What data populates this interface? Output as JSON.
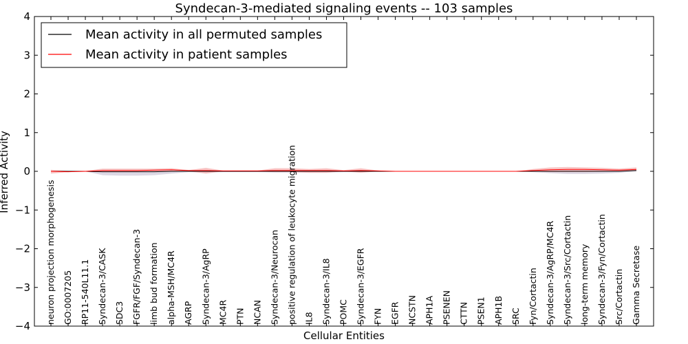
{
  "chart_data": {
    "type": "line",
    "title": "Syndecan-3-mediated signaling events -- 103 samples",
    "xlabel": "Cellular Entities",
    "ylabel": "Inferred Activity",
    "ylim": [
      -4,
      4
    ],
    "yticks": [
      -4,
      -3,
      -2,
      -1,
      0,
      1,
      2,
      3,
      4
    ],
    "ytick_labels": [
      "−4",
      "−3",
      "−2",
      "−1",
      "0",
      "1",
      "2",
      "3",
      "4"
    ],
    "legend_position": "top-left",
    "categories": [
      "neuron projection morphogenesis",
      "GO:0007205",
      "RP11-540L11.1",
      "Syndecan-3/CASK",
      "SDC3",
      "FGFR/FGF/Syndecan-3",
      "limb bud formation",
      "alpha-MSH/MC4R",
      "AGRP",
      "Syndecan-3/AgRP",
      "MC4R",
      "PTN",
      "NCAN",
      "Syndecan-3/Neurocan",
      "positive regulation of leukocyte migration",
      "IL8",
      "Syndecan-3/IL8",
      "POMC",
      "Syndecan-3/EGFR",
      "FYN",
      "EGFR",
      "NCSTN",
      "APH1A",
      "PSENEN",
      "CTTN",
      "PSEN1",
      "APH1B",
      "SRC",
      "Fyn/Cortactin",
      "Syndecan-3/AgRP/MC4R",
      "Syndecan-3/Src/Cortactin",
      "long-term memory",
      "Syndecan-3/Fyn/Cortactin",
      "Src/Cortactin",
      "Gamma Secretase"
    ],
    "series": [
      {
        "name": "Mean activity in all permuted samples",
        "color": "#000000",
        "values": [
          0,
          0,
          0,
          -0.01,
          -0.01,
          -0.01,
          -0.01,
          0,
          0,
          0,
          0,
          0,
          0,
          0,
          0,
          0,
          0,
          0,
          0,
          0,
          0,
          0,
          0,
          0,
          0,
          0,
          0,
          0,
          0,
          0,
          0,
          0,
          0,
          0,
          0.02
        ],
        "band_upper": [
          0,
          0,
          0,
          0.03,
          0.03,
          0.03,
          0.03,
          0.02,
          0.01,
          0.01,
          0.01,
          0.01,
          0.01,
          0.01,
          0.01,
          0.01,
          0.01,
          0.01,
          0.01,
          0.01,
          0,
          0,
          0,
          0,
          0,
          0,
          0,
          0,
          0.01,
          0.02,
          0.03,
          0.03,
          0.03,
          0.03,
          0.04
        ],
        "band_lower": [
          0,
          0,
          0,
          -0.1,
          -0.11,
          -0.11,
          -0.1,
          -0.06,
          -0.02,
          -0.03,
          -0.02,
          -0.02,
          -0.02,
          -0.03,
          -0.03,
          -0.03,
          -0.03,
          -0.02,
          -0.02,
          -0.01,
          0,
          0,
          0,
          0,
          0,
          0,
          0,
          0,
          -0.02,
          -0.05,
          -0.07,
          -0.07,
          -0.06,
          -0.04,
          0
        ],
        "band_color": "#cfc8d8"
      },
      {
        "name": "Mean activity in patient samples",
        "color": "#ff0000",
        "values": [
          0,
          -0.01,
          0,
          0.02,
          0.02,
          0.02,
          0.03,
          0.04,
          0.02,
          0.02,
          0.01,
          0.01,
          0.01,
          0.02,
          0.02,
          0.02,
          0.02,
          0.01,
          0.02,
          0.01,
          0,
          0,
          0,
          0,
          0,
          0,
          0,
          0,
          0.02,
          0.04,
          0.05,
          0.05,
          0.04,
          0.03,
          0.05
        ],
        "band_upper": [
          0.04,
          0.01,
          0.01,
          0.07,
          0.07,
          0.07,
          0.07,
          0.08,
          0.03,
          0.09,
          0.02,
          0.02,
          0.02,
          0.08,
          0.08,
          0.06,
          0.08,
          0.03,
          0.08,
          0.02,
          0,
          0,
          0,
          0,
          0,
          0,
          0,
          0,
          0.06,
          0.1,
          0.11,
          0.1,
          0.09,
          0.07,
          0.1
        ],
        "band_lower": [
          -0.06,
          -0.02,
          -0.01,
          -0.02,
          -0.02,
          -0.02,
          -0.01,
          0,
          0,
          -0.06,
          0,
          0,
          0,
          -0.02,
          -0.02,
          -0.04,
          -0.04,
          0,
          -0.04,
          0,
          0,
          0,
          0,
          0,
          0,
          0,
          0,
          0,
          -0.01,
          -0.02,
          -0.02,
          -0.02,
          -0.01,
          0,
          0.01
        ],
        "band_color": "#f2a0a0"
      }
    ]
  }
}
